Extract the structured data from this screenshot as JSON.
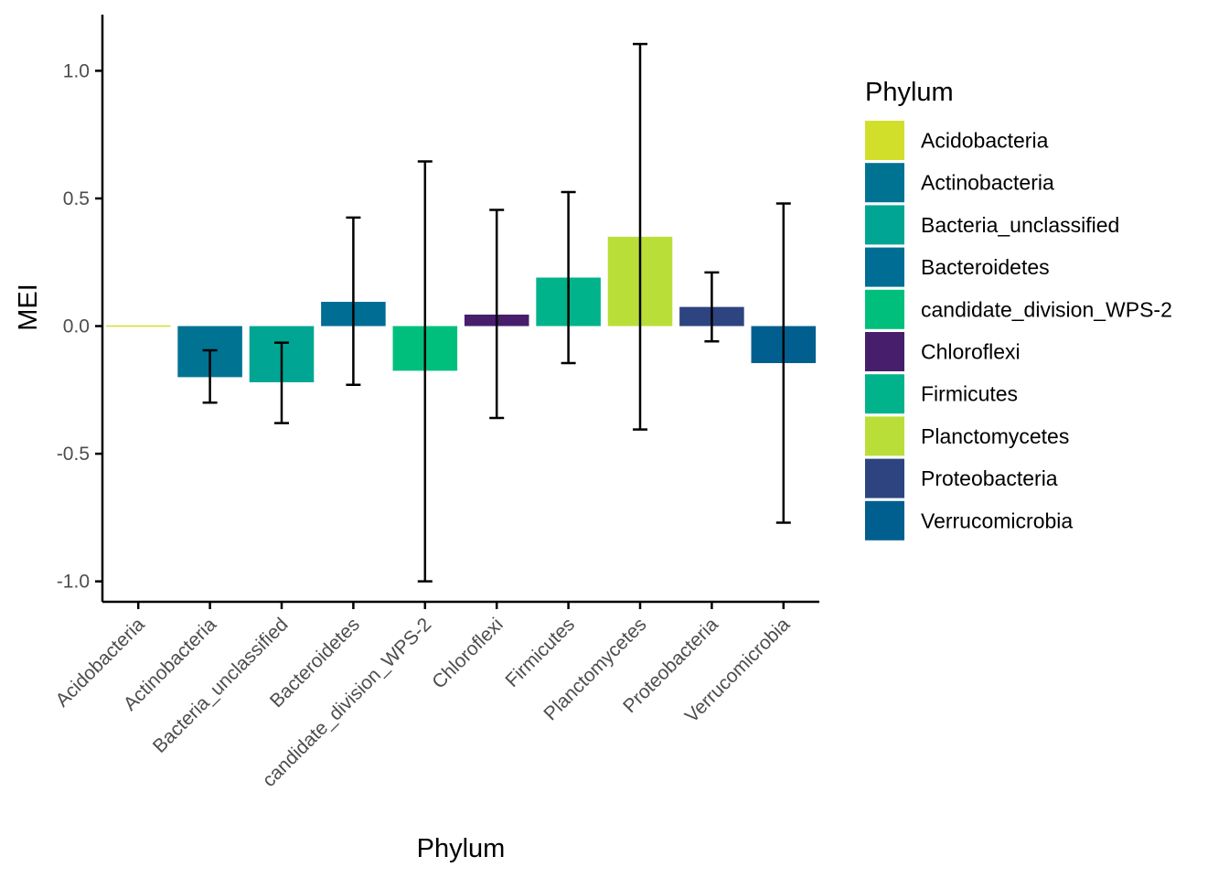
{
  "chart_data": {
    "type": "bar",
    "title": "",
    "xlabel": "Phylum",
    "ylabel": "MEI",
    "ylim": [
      -1.08,
      1.22
    ],
    "yticks": [
      -1.0,
      -0.5,
      0.0,
      0.5,
      1.0
    ],
    "ytick_labels": [
      "-1.0",
      "-0.5",
      "0.0",
      "0.5",
      "1.0"
    ],
    "grid": false,
    "legend_position": "right",
    "legend_title": "Phylum",
    "categories": [
      "Acidobacteria",
      "Actinobacteria",
      "Bacteria_unclassified",
      "Bacteroidetes",
      "candidate_division_WPS-2",
      "Chloroflexi",
      "Firmicutes",
      "Planctomycetes",
      "Proteobacteria",
      "Verrucomicrobia"
    ],
    "values": [
      0.0,
      -0.2,
      -0.22,
      0.095,
      -0.175,
      0.045,
      0.19,
      0.35,
      0.075,
      -0.145
    ],
    "error_low": [
      null,
      -0.3,
      -0.38,
      -0.23,
      -1.0,
      -0.36,
      -0.145,
      -0.405,
      -0.06,
      -0.77
    ],
    "error_high": [
      null,
      -0.095,
      -0.065,
      0.425,
      0.645,
      0.455,
      0.525,
      1.105,
      0.21,
      0.48
    ],
    "colors": [
      "#d2df2a",
      "#007393",
      "#00a693",
      "#006d94",
      "#00bf7d",
      "#471e6b",
      "#00b38a",
      "#bade38",
      "#2d4481",
      "#005f8e"
    ]
  }
}
